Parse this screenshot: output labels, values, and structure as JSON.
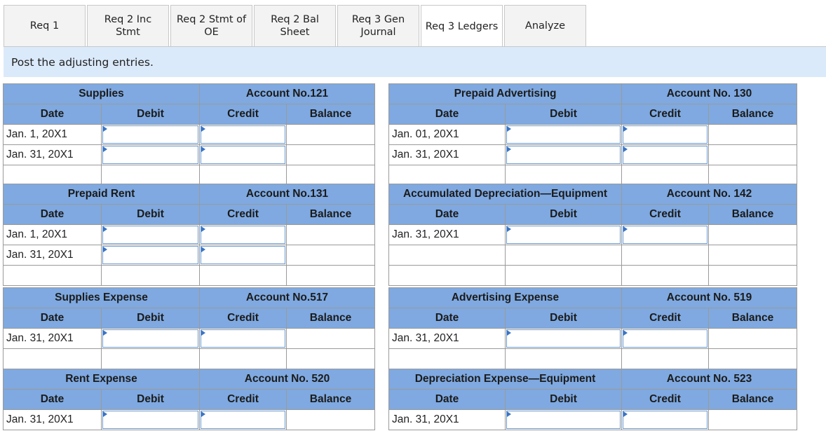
{
  "tabs": [
    {
      "label": "Req 1"
    },
    {
      "label": "Req 2 Inc\nStmt"
    },
    {
      "label": "Req 2 Stmt of\nOE"
    },
    {
      "label": "Req 2 Bal\nSheet"
    },
    {
      "label": "Req 3 Gen\nJournal"
    },
    {
      "label": "Req 3 Ledgers",
      "active": true
    },
    {
      "label": "Analyze"
    }
  ],
  "instruction": "Post the adjusting entries.",
  "col_headers": {
    "date": "Date",
    "debit": "Debit",
    "credit": "Credit",
    "balance": "Balance"
  },
  "ledgers": [
    {
      "title": "Supplies",
      "account": "Account No.121",
      "rows": [
        "Jan. 1, 20X1",
        "Jan. 31, 20X1"
      ]
    },
    {
      "title": "Prepaid Advertising",
      "account": "Account No. 130",
      "rows": [
        "Jan. 01, 20X1",
        "Jan. 31, 20X1"
      ]
    },
    {
      "title": "Prepaid Rent",
      "account": "Account No.131",
      "rows": [
        "Jan. 1, 20X1",
        "Jan. 31, 20X1"
      ]
    },
    {
      "title": "Accumulated Depreciation—Equipment",
      "account": "Account No. 142",
      "rows": [
        "Jan. 31, 20X1"
      ]
    },
    {
      "title": "Supplies Expense",
      "account": "Account No.517",
      "rows": [
        "Jan. 31, 20X1"
      ]
    },
    {
      "title": "Advertising Expense",
      "account": "Account No. 519",
      "rows": [
        "Jan. 31, 20X1"
      ]
    },
    {
      "title": "Rent Expense",
      "account": "Account No. 520",
      "rows": [
        "Jan. 31, 20X1"
      ]
    },
    {
      "title": "Depreciation Expense—Equipment",
      "account": "Account No. 523",
      "rows": [
        "Jan. 31, 20X1"
      ]
    }
  ]
}
